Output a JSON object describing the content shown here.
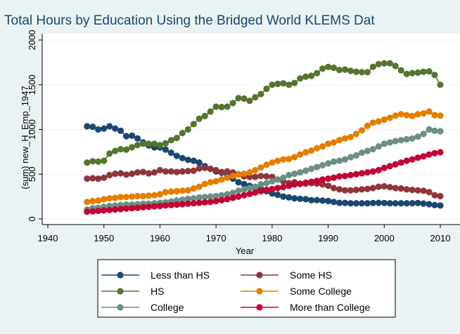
{
  "chart_data": {
    "type": "line",
    "title": "Total Hours by Education Using the Bridged World KLEMS Dat",
    "xlabel": "Year",
    "ylabel": "(sum) new_H_Emp_1947",
    "xlim": [
      1938,
      2012
    ],
    "ylim": [
      -50,
      2050
    ],
    "xticks": [
      1940,
      1950,
      1960,
      1970,
      1980,
      1990,
      2000,
      2010
    ],
    "yticks": [
      0,
      500,
      1000,
      1500,
      2000
    ],
    "grid": "horizontal",
    "legend_position": "bottom",
    "x": [
      1947,
      1948,
      1949,
      1950,
      1951,
      1952,
      1953,
      1954,
      1955,
      1956,
      1957,
      1958,
      1959,
      1960,
      1961,
      1962,
      1963,
      1964,
      1965,
      1966,
      1967,
      1968,
      1969,
      1970,
      1971,
      1972,
      1973,
      1974,
      1975,
      1976,
      1977,
      1978,
      1979,
      1980,
      1981,
      1982,
      1983,
      1984,
      1985,
      1986,
      1987,
      1988,
      1989,
      1990,
      1991,
      1992,
      1993,
      1994,
      1995,
      1996,
      1997,
      1998,
      1999,
      2000,
      2001,
      2002,
      2003,
      2004,
      2005,
      2006,
      2007,
      2008,
      2009,
      2010
    ],
    "series": [
      {
        "name": "Less than HS",
        "color": "#1a476f",
        "values": [
          1035,
          1030,
          1000,
          1010,
          1035,
          1010,
          985,
          925,
          930,
          900,
          855,
          820,
          800,
          800,
          775,
          740,
          705,
          680,
          660,
          650,
          630,
          590,
          560,
          530,
          515,
          500,
          450,
          410,
          390,
          370,
          350,
          335,
          310,
          285,
          270,
          250,
          240,
          230,
          225,
          220,
          210,
          210,
          205,
          200,
          190,
          180,
          180,
          175,
          175,
          175,
          175,
          178,
          180,
          178,
          175,
          175,
          175,
          175,
          176,
          178,
          172,
          165,
          155,
          150
        ]
      },
      {
        "name": "Some HS",
        "color": "#90353b",
        "values": [
          450,
          455,
          450,
          460,
          490,
          505,
          510,
          495,
          505,
          520,
          525,
          510,
          520,
          545,
          530,
          530,
          525,
          530,
          535,
          540,
          565,
          570,
          560,
          545,
          525,
          530,
          520,
          500,
          475,
          470,
          470,
          480,
          475,
          470,
          440,
          420,
          400,
          410,
          390,
          395,
          400,
          395,
          385,
          370,
          345,
          330,
          320,
          320,
          325,
          330,
          335,
          345,
          360,
          365,
          355,
          345,
          340,
          330,
          325,
          320,
          315,
          300,
          265,
          255
        ]
      },
      {
        "name": "HS",
        "color": "#55752f",
        "values": [
          630,
          645,
          640,
          650,
          730,
          760,
          780,
          775,
          800,
          825,
          840,
          840,
          840,
          825,
          845,
          880,
          905,
          960,
          1000,
          1060,
          1120,
          1150,
          1200,
          1255,
          1250,
          1255,
          1295,
          1350,
          1345,
          1320,
          1360,
          1395,
          1455,
          1500,
          1510,
          1515,
          1500,
          1520,
          1570,
          1590,
          1600,
          1630,
          1680,
          1700,
          1690,
          1665,
          1670,
          1655,
          1645,
          1640,
          1640,
          1700,
          1730,
          1740,
          1740,
          1710,
          1660,
          1620,
          1630,
          1635,
          1645,
          1650,
          1610,
          1500
        ]
      },
      {
        "name": "Some College",
        "color": "#e37e00",
        "values": [
          190,
          200,
          205,
          220,
          230,
          235,
          245,
          245,
          250,
          255,
          255,
          260,
          265,
          275,
          300,
          305,
          310,
          315,
          320,
          340,
          360,
          390,
          410,
          420,
          440,
          460,
          480,
          495,
          505,
          520,
          545,
          575,
          605,
          630,
          650,
          665,
          670,
          690,
          720,
          745,
          765,
          790,
          810,
          840,
          855,
          880,
          900,
          915,
          950,
          990,
          1040,
          1075,
          1090,
          1110,
          1130,
          1155,
          1170,
          1160,
          1150,
          1170,
          1180,
          1200,
          1160,
          1155
        ]
      },
      {
        "name": "College",
        "color": "#6e8e84",
        "values": [
          105,
          120,
          125,
          135,
          145,
          150,
          155,
          160,
          160,
          165,
          170,
          170,
          175,
          180,
          185,
          195,
          205,
          215,
          225,
          230,
          240,
          245,
          250,
          255,
          265,
          275,
          290,
          315,
          330,
          345,
          360,
          385,
          400,
          420,
          440,
          460,
          490,
          505,
          520,
          540,
          560,
          580,
          600,
          620,
          640,
          650,
          665,
          690,
          710,
          740,
          760,
          780,
          810,
          840,
          855,
          870,
          880,
          890,
          900,
          920,
          950,
          1000,
          985,
          980
        ]
      },
      {
        "name": "More than College",
        "color": "#c10534",
        "values": [
          80,
          85,
          90,
          95,
          100,
          105,
          110,
          115,
          120,
          125,
          130,
          135,
          140,
          145,
          150,
          155,
          160,
          165,
          170,
          175,
          180,
          185,
          190,
          200,
          210,
          220,
          235,
          250,
          265,
          280,
          295,
          310,
          325,
          335,
          345,
          355,
          370,
          385,
          395,
          405,
          415,
          425,
          440,
          450,
          460,
          475,
          480,
          490,
          500,
          510,
          520,
          530,
          545,
          570,
          590,
          610,
          630,
          650,
          665,
          685,
          700,
          720,
          735,
          745
        ]
      }
    ]
  }
}
